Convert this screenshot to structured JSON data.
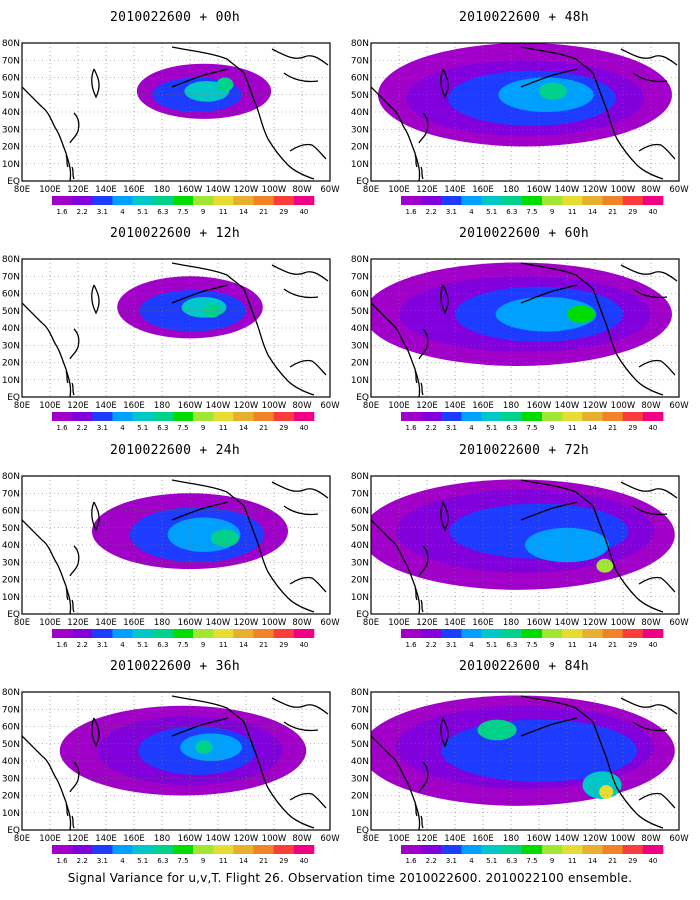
{
  "footer": "Signal Variance for u,v,T. Flight 26. Observation time 2010022600. 2010022100 ensemble.",
  "chart_data": {
    "type": "heatmap",
    "panels": [
      {
        "title": "2010022600 + 00h",
        "lead_hours": 0
      },
      {
        "title": "2010022600 + 48h",
        "lead_hours": 48
      },
      {
        "title": "2010022600 + 12h",
        "lead_hours": 12
      },
      {
        "title": "2010022600 + 60h",
        "lead_hours": 60
      },
      {
        "title": "2010022600 + 24h",
        "lead_hours": 24
      },
      {
        "title": "2010022600 + 72h",
        "lead_hours": 72
      },
      {
        "title": "2010022600 + 36h",
        "lead_hours": 36
      },
      {
        "title": "2010022600 + 84h",
        "lead_hours": 84
      }
    ],
    "x_ticks": [
      "80E",
      "100E",
      "120E",
      "140E",
      "160E",
      "180",
      "160W",
      "140W",
      "120W",
      "100W",
      "80W",
      "60W"
    ],
    "y_ticks": [
      "EQ",
      "10N",
      "20N",
      "30N",
      "40N",
      "50N",
      "60N",
      "70N",
      "80N"
    ],
    "xlim": [
      "80E",
      "60W"
    ],
    "ylim": [
      "EQ",
      "80N"
    ],
    "grid": true,
    "colorbar": {
      "levels": [
        "1.6",
        "2.2",
        "3.1",
        "4",
        "5.1",
        "6.3",
        "7.5",
        "9",
        "11",
        "14",
        "21",
        "29",
        "40"
      ],
      "colors": [
        "#a000c8",
        "#8200dc",
        "#1e3cff",
        "#00a0ff",
        "#00c8c8",
        "#00d28c",
        "#00dc00",
        "#a0e632",
        "#e6dc32",
        "#e6af2d",
        "#f08228",
        "#fa3c3c",
        "#f00082"
      ]
    }
  }
}
